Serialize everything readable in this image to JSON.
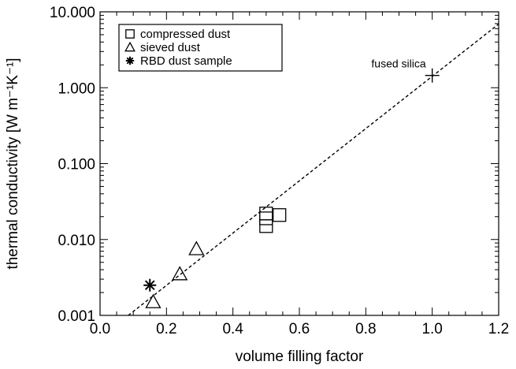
{
  "chart_data": {
    "type": "scatter",
    "title": "",
    "xlabel": "volume filling factor",
    "ylabel": "thermal conductivity [W m⁻¹K⁻¹]",
    "xlim": [
      0.0,
      1.2
    ],
    "ylim": [
      0.001,
      10.0
    ],
    "yscale": "log",
    "x_ticks": [
      0.0,
      0.2,
      0.4,
      0.6,
      0.8,
      1.0,
      1.2
    ],
    "x_tick_labels": [
      "0.0",
      "0.2",
      "0.4",
      "0.6",
      "0.8",
      "1.0",
      "1.2"
    ],
    "y_ticks": [
      0.001,
      0.01,
      0.1,
      1.0,
      10.0
    ],
    "y_tick_labels": [
      "0.001",
      "0.010",
      "0.100",
      "1.000",
      "10.000"
    ],
    "grid": false,
    "legend_position": "top-left",
    "series": [
      {
        "name": "compressed dust",
        "marker": "square",
        "x": [
          0.5,
          0.5,
          0.5,
          0.54
        ],
        "y": [
          0.015,
          0.019,
          0.022,
          0.021
        ]
      },
      {
        "name": "sieved dust",
        "marker": "triangle",
        "x": [
          0.16,
          0.24,
          0.29
        ],
        "y": [
          0.0015,
          0.0035,
          0.0075
        ]
      },
      {
        "name": "RBD dust sample",
        "marker": "asterisk",
        "x": [
          0.15
        ],
        "y": [
          0.0025
        ]
      },
      {
        "name": "",
        "marker": "plus",
        "x": [
          1.0
        ],
        "y": [
          1.45
        ]
      }
    ],
    "fit_line": {
      "style": "dashed",
      "x": [
        0.085,
        1.2
      ],
      "y": [
        0.001,
        6.9
      ]
    },
    "annotations": [
      {
        "text": "fused silica",
        "x": 1.0,
        "y": 1.45
      }
    ]
  }
}
